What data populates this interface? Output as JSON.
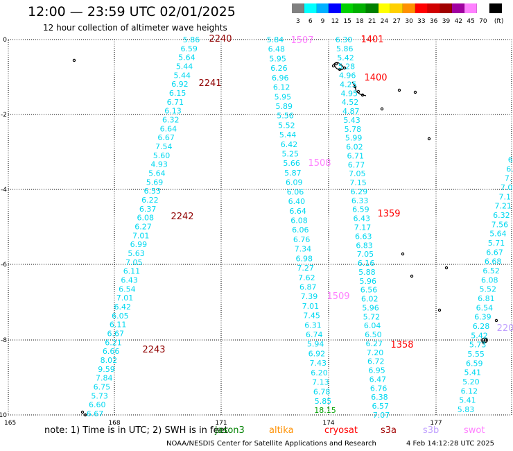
{
  "header": {
    "title": "12:00 — 23:59 UTC 02/01/2025",
    "subtitle": "12 hour collection of altimeter wave heights"
  },
  "color_scale": {
    "unit": "(ft)",
    "stops": [
      {
        "label": "3",
        "color": "#808080"
      },
      {
        "label": "6",
        "color": "#00ffff"
      },
      {
        "label": "9",
        "color": "#00b0ff"
      },
      {
        "label": "12",
        "color": "#0000ff"
      },
      {
        "label": "15",
        "color": "#00d000"
      },
      {
        "label": "18",
        "color": "#00b000"
      },
      {
        "label": "21",
        "color": "#008000"
      },
      {
        "label": "24",
        "color": "#ffff00"
      },
      {
        "label": "27",
        "color": "#ffd000"
      },
      {
        "label": "30",
        "color": "#ff9000"
      },
      {
        "label": "33",
        "color": "#ff0000"
      },
      {
        "label": "36",
        "color": "#d00000"
      },
      {
        "label": "39",
        "color": "#a00000"
      },
      {
        "label": "42",
        "color": "#a000a0"
      },
      {
        "label": "45",
        "color": "#ff80ff"
      },
      {
        "label": "70",
        "color": "#ffffff"
      },
      {
        "label": "",
        "color": "#000000"
      }
    ]
  },
  "axes": {
    "lon_ticks": [
      "165",
      "168",
      "171",
      "174",
      "177"
    ],
    "lat_ticks": [
      "0",
      "-2",
      "-4",
      "-6",
      "-8",
      "-10"
    ]
  },
  "tracks": [
    {
      "satellite": "jason",
      "color": "#00d8f0",
      "values": [
        "5.86",
        "6.59",
        "5.64",
        "5.44",
        "5.44",
        "6.92",
        "6.15",
        "6.71",
        "6.13",
        "6.32",
        "6.64",
        "6.67",
        "7.54",
        "5.60",
        "4.93",
        "5.64",
        "5.69",
        "6.53",
        "6.22",
        "6.37",
        "6.08",
        "6.27",
        "7.01",
        "6.99",
        "5.63",
        "7.05",
        "6.11",
        "6.43",
        "6.54",
        "7.01",
        "6.42",
        "6.05",
        "6.11",
        "6.67",
        "6.21",
        "6.66",
        "8.02",
        "9.59",
        "7.84",
        "6.75",
        "5.73",
        "6.60",
        "6.67"
      ]
    },
    {
      "satellite": "jason2",
      "color": "#00d8f0",
      "values": [
        "5.84",
        "6.48",
        "5.95",
        "6.26",
        "6.96",
        "6.12",
        "5.95",
        "5.89",
        "5.56",
        "5.52",
        "5.44",
        "6.42",
        "5.25",
        "5.66",
        "5.87",
        "6.09",
        "6.06",
        "6.40",
        "6.64",
        "6.08",
        "6.06",
        "6.76",
        "7.34",
        "6.98",
        "7.27",
        "7.62",
        "6.87",
        "7.39",
        "7.01",
        "7.45",
        "6.31",
        "6.74",
        "5.94",
        "6.92",
        "7.43",
        "6.20",
        "7.13",
        "6.78",
        "5.85"
      ]
    },
    {
      "satellite": "jason3",
      "color": "#00d8f0",
      "values": [
        "6.30",
        "5.86",
        "5.42",
        "5.28",
        "4.96",
        "4.25",
        "4.95",
        "4.52",
        "4.87",
        "5.43",
        "5.78",
        "5.99",
        "6.02",
        "6.71",
        "6.77",
        "7.05",
        "7.15",
        "6.29",
        "6.33",
        "6.59",
        "6.43",
        "7.17",
        "6.63",
        "6.83",
        "7.05",
        "6.16",
        "5.88",
        "5.96",
        "6.56",
        "6.02",
        "5.96",
        "5.72",
        "6.04",
        "6.50",
        "6.27",
        "7.20",
        "6.72",
        "6.95",
        "6.47",
        "6.76",
        "6.38",
        "6.57",
        "7.07"
      ]
    },
    {
      "satellite": "jason4",
      "color": "#00d8f0",
      "values": [
        "6.",
        "6.",
        "7.",
        "7.0",
        "7.1",
        "7.21",
        "6.32",
        "7.56",
        "5.64",
        "5.71",
        "6.67",
        "6.68",
        "6.52",
        "6.08",
        "5.52",
        "6.81",
        "6.54",
        "6.39",
        "6.28",
        "5.42",
        "5.73",
        "5.55",
        "6.59",
        "5.41",
        "5.20",
        "6.12",
        "5.41",
        "5.83"
      ]
    }
  ],
  "track_start_times": [
    {
      "label": "2240",
      "color": "#900000"
    },
    {
      "label": "2241",
      "color": "#900000"
    },
    {
      "label": "2242",
      "color": "#900000"
    },
    {
      "label": "2243",
      "color": "#900000"
    },
    {
      "label": "1507",
      "color": "#ff80ff"
    },
    {
      "label": "1508",
      "color": "#ff80ff"
    },
    {
      "label": "1509",
      "color": "#ff80ff"
    },
    {
      "label": "1401",
      "color": "#ff0000"
    },
    {
      "label": "1400",
      "color": "#ff0000"
    },
    {
      "label": "1359",
      "color": "#ff0000"
    },
    {
      "label": "1358",
      "color": "#ff0000"
    },
    {
      "label": "220",
      "color": "#c0a0ff"
    }
  ],
  "extra_values": [
    {
      "label": "18.15",
      "color": "#00a000"
    }
  ],
  "footer": {
    "note": "note:  1) Time is in UTC;  2) SWH is in feet",
    "legend": [
      {
        "label": "jason3",
        "color": "#008000"
      },
      {
        "label": "altika",
        "color": "#ff9000"
      },
      {
        "label": "cryosat",
        "color": "#ff0000"
      },
      {
        "label": "s3a",
        "color": "#a00000"
      },
      {
        "label": "s3b",
        "color": "#c0a0ff"
      },
      {
        "label": "swot",
        "color": "#ff80ff"
      }
    ],
    "credit": "NOAA/NESDIS Center for Satellite Applications and Research",
    "timestamp": "4 Feb 14:12:28 UTC 2025"
  }
}
